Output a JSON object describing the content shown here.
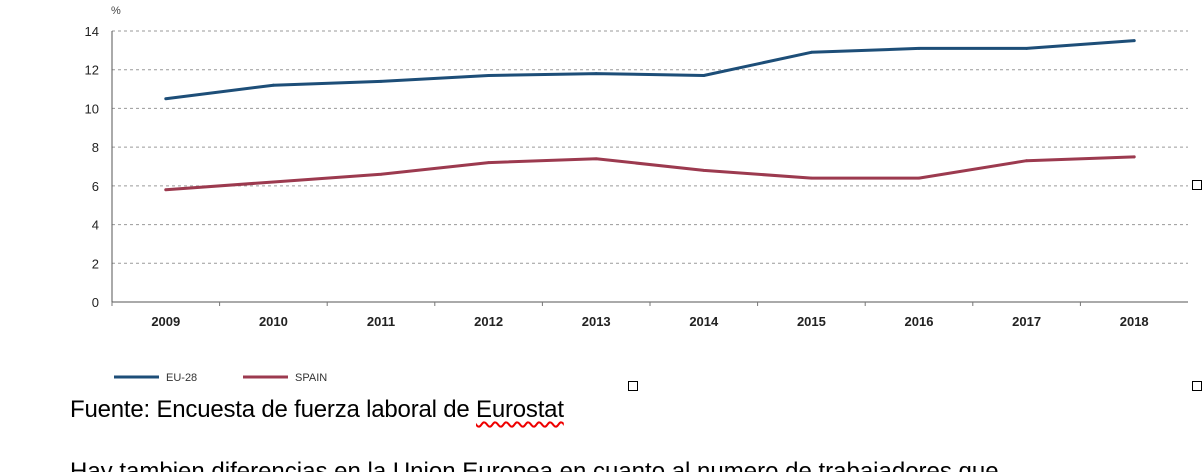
{
  "chart_data": {
    "type": "line",
    "title": "",
    "unit": "%",
    "xlabel": "",
    "ylabel": "",
    "categories": [
      "2009",
      "2010",
      "2011",
      "2012",
      "2013",
      "2014",
      "2015",
      "2016",
      "2017",
      "2018"
    ],
    "ylim": [
      0,
      14
    ],
    "yticks": [
      0,
      2,
      4,
      6,
      8,
      10,
      12,
      14
    ],
    "grid": "horizontal-dashed",
    "legend_position": "bottom-left",
    "series": [
      {
        "name": "EU-28",
        "color": "#1d4e78",
        "values": [
          10.5,
          11.2,
          11.4,
          11.7,
          11.8,
          11.7,
          12.9,
          13.1,
          13.1,
          13.5
        ]
      },
      {
        "name": "SPAIN",
        "color": "#9c3a4f",
        "values": [
          5.8,
          6.2,
          6.6,
          7.2,
          7.4,
          6.8,
          6.4,
          6.4,
          7.3,
          7.5
        ]
      }
    ]
  },
  "caption": {
    "prefix": "Fuente: Encuesta de fuerza laboral de ",
    "highlighted_word": "Eurostat"
  },
  "next_line_text": "Hay tambien diferencias en la Union Europea en cuanto al numero de trabajadores que"
}
